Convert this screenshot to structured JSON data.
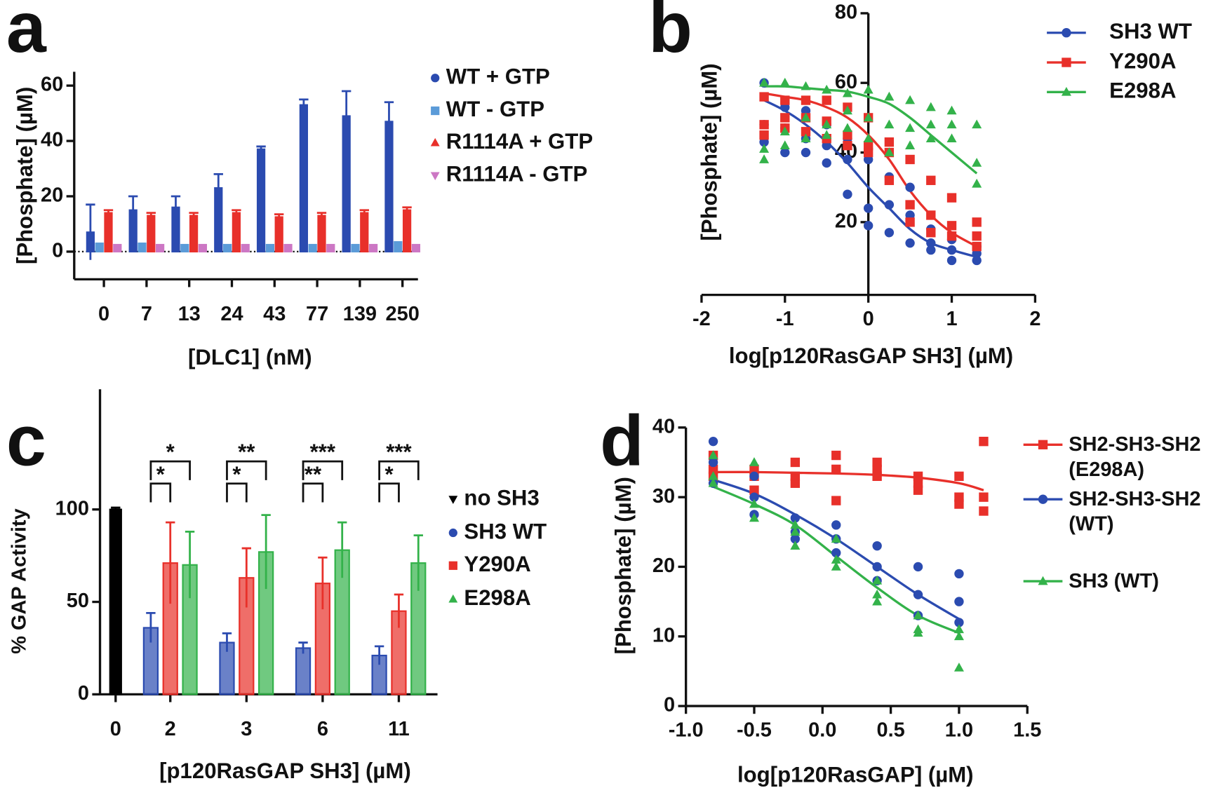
{
  "chart_data": [
    {
      "panel": "a",
      "type": "bar",
      "xlabel": "[DLC1] (nM)",
      "ylabel": "[Phosphate] (µM)",
      "categories": [
        "0",
        "7",
        "13",
        "24",
        "43",
        "77",
        "139",
        "250"
      ],
      "ylim": [
        -10,
        65
      ],
      "yticks": [
        0,
        20,
        40,
        60
      ],
      "hline": 0,
      "series": [
        {
          "name": "WT + GTP",
          "color": "#2b4bb0",
          "marker": "circle",
          "values": [
            7,
            15,
            16,
            23,
            37,
            53,
            49,
            47
          ],
          "errors": [
            10,
            5,
            4,
            5,
            1,
            2,
            9,
            7
          ]
        },
        {
          "name": "WT - GTP",
          "color": "#5b9bd8",
          "marker": "square",
          "values": [
            3,
            3,
            2.5,
            2.5,
            2.5,
            2.5,
            2.5,
            3.5
          ]
        },
        {
          "name": "R1114A + GTP",
          "color": "#e8302a",
          "marker": "triangle",
          "values": [
            14,
            13,
            13,
            14,
            12.5,
            13,
            14,
            15
          ],
          "errors": [
            1,
            1,
            1,
            1,
            1,
            1,
            1,
            1
          ]
        },
        {
          "name": "R1114A - GTP",
          "color": "#cc77c4",
          "marker": "triangle-down",
          "values": [
            2.5,
            2.5,
            2.5,
            2.5,
            2.5,
            2.5,
            2.5,
            2.5
          ]
        }
      ]
    },
    {
      "panel": "b",
      "type": "scatter",
      "xlabel": "log[p120RasGAP SH3] (µM)",
      "ylabel": "[Phosphate] (µM)",
      "xlim": [
        -2,
        2
      ],
      "xticks": [
        -2,
        -1,
        0,
        1,
        2
      ],
      "ylim": [
        0,
        80
      ],
      "yticks": [
        20,
        40,
        60,
        80
      ],
      "y_axis_crosses": 0,
      "series": [
        {
          "name": "SH3 WT",
          "color": "#2b4bb0",
          "marker": "circle",
          "x": [
            -1.25,
            -1,
            -0.75,
            -0.5,
            -0.25,
            0,
            0.25,
            0.5,
            0.75,
            1,
            1.3
          ],
          "points": [
            [
              60,
              43,
              48
            ],
            [
              53,
              47,
              40
            ],
            [
              52,
              44,
              40
            ],
            [
              48,
              42,
              37
            ],
            [
              44,
              38,
              28
            ],
            [
              38,
              24,
              19
            ],
            [
              33,
              25,
              17
            ],
            [
              30,
              22,
              14
            ],
            [
              18,
              14,
              12
            ],
            [
              15,
              12,
              9
            ],
            [
              13,
              11,
              9
            ]
          ],
          "fit": [
            55,
            52,
            48,
            43,
            37,
            30,
            24,
            18,
            14,
            12,
            10
          ]
        },
        {
          "name": "Y290A",
          "color": "#e8302a",
          "marker": "square",
          "x": [
            -1.25,
            -1,
            -0.75,
            -0.5,
            -0.25,
            0,
            0.25,
            0.5,
            0.75,
            1,
            1.3
          ],
          "points": [
            [
              56,
              48,
              45
            ],
            [
              55,
              50,
              47
            ],
            [
              55,
              50,
              46
            ],
            [
              55,
              49,
              44
            ],
            [
              53,
              45,
              42
            ],
            [
              50,
              42,
              40
            ],
            [
              43,
              40,
              32
            ],
            [
              38,
              25,
              20
            ],
            [
              32,
              22,
              17
            ],
            [
              27,
              19,
              16
            ],
            [
              20,
              16,
              13
            ]
          ],
          "fit": [
            57,
            56,
            55,
            53,
            50,
            45,
            38,
            29,
            22,
            17,
            13
          ]
        },
        {
          "name": "E298A",
          "color": "#33b24a",
          "marker": "triangle",
          "x": [
            -1.25,
            -1,
            -0.75,
            -0.5,
            -0.25,
            0,
            0.25,
            0.5,
            0.75,
            1,
            1.3
          ],
          "points": [
            [
              60,
              41,
              38
            ],
            [
              60,
              46,
              42
            ],
            [
              59,
              50,
              44
            ],
            [
              58,
              48,
              45
            ],
            [
              57,
              52,
              47
            ],
            [
              58,
              50,
              44
            ],
            [
              56,
              48,
              40
            ],
            [
              55,
              47,
              42
            ],
            [
              53,
              48,
              44
            ],
            [
              52,
              48,
              44
            ],
            [
              48,
              37,
              31
            ]
          ],
          "fit": [
            59,
            59,
            58.5,
            58,
            57.5,
            56,
            54,
            50,
            45,
            40,
            34
          ]
        }
      ]
    },
    {
      "panel": "c",
      "type": "bar",
      "xlabel": "[p120RasGAP SH3] (µM)",
      "ylabel": "% GAP Activity",
      "categories": [
        "0",
        "2",
        "3",
        "6",
        "11"
      ],
      "ylim": [
        0,
        165
      ],
      "yticks": [
        0,
        50,
        100
      ],
      "series": [
        {
          "name": "no SH3",
          "color": "#000000",
          "marker": "triangle-down",
          "values": [
            100,
            null,
            null,
            null,
            null
          ],
          "errors": [
            1,
            null,
            null,
            null,
            null
          ]
        },
        {
          "name": "SH3 WT",
          "color": "#2b4bb0",
          "marker": "circle",
          "values": [
            null,
            36,
            28,
            25,
            21
          ],
          "errors": [
            null,
            8,
            5,
            3,
            5
          ]
        },
        {
          "name": "Y290A",
          "color": "#e8302a",
          "marker": "square",
          "values": [
            null,
            71,
            63,
            60,
            45
          ],
          "errors": [
            null,
            22,
            16,
            14,
            9
          ]
        },
        {
          "name": "E298A",
          "color": "#33b24a",
          "marker": "triangle",
          "values": [
            null,
            70,
            77,
            78,
            71
          ],
          "errors": [
            null,
            18,
            20,
            15,
            15
          ]
        }
      ],
      "brackets": [
        {
          "category": 1,
          "series": [
            1,
            2
          ],
          "y": 114,
          "label": "*"
        },
        {
          "category": 1,
          "series": [
            1,
            3
          ],
          "y": 126,
          "label": "*"
        },
        {
          "category": 2,
          "series": [
            1,
            2
          ],
          "y": 114,
          "label": "*"
        },
        {
          "category": 2,
          "series": [
            1,
            3
          ],
          "y": 126,
          "label": "**"
        },
        {
          "category": 3,
          "series": [
            1,
            2
          ],
          "y": 114,
          "label": "**"
        },
        {
          "category": 3,
          "series": [
            1,
            3
          ],
          "y": 126,
          "label": "***"
        },
        {
          "category": 4,
          "series": [
            1,
            2
          ],
          "y": 114,
          "label": "*"
        },
        {
          "category": 4,
          "series": [
            1,
            3
          ],
          "y": 126,
          "label": "***"
        }
      ]
    },
    {
      "panel": "d",
      "type": "scatter",
      "xlabel": "log[p120RasGAP] (µM)",
      "ylabel": "[Phosphate] (µM)",
      "xlim": [
        -1,
        1.5
      ],
      "xticks": [
        {
          "value": -1,
          "label": "-1.0"
        },
        {
          "value": -0.5,
          "label": "-0.5"
        },
        {
          "value": 0,
          "label": "0.0"
        },
        {
          "value": 0.5,
          "label": "0.5"
        },
        {
          "value": 1,
          "label": "1.0"
        },
        {
          "value": 1.5,
          "label": "1.5"
        }
      ],
      "ylim": [
        0,
        40
      ],
      "yticks": [
        0,
        10,
        20,
        30,
        40
      ],
      "series": [
        {
          "name": "SH2-SH3-SH2\n(E298A)",
          "color": "#e8302a",
          "marker": "square",
          "x": [
            -0.8,
            -0.5,
            -0.2,
            0.1,
            0.4,
            0.7,
            1,
            1.18
          ],
          "points": [
            [
              36,
              34,
              33
            ],
            [
              34,
              33,
              31
            ],
            [
              35,
              33,
              32
            ],
            [
              36,
              34,
              29.5
            ],
            [
              35,
              34,
              33
            ],
            [
              33,
              32,
              31
            ],
            [
              33,
              30,
              29
            ],
            [
              38,
              30,
              28
            ]
          ],
          "fit": [
            33.6,
            33.6,
            33.5,
            33.4,
            33.2,
            32.8,
            32,
            31
          ]
        },
        {
          "name": "SH2-SH3-SH2\n(WT)",
          "color": "#2b4bb0",
          "marker": "circle",
          "x": [
            -0.8,
            -0.5,
            -0.2,
            0.1,
            0.4,
            0.7,
            1
          ],
          "points": [
            [
              38,
              35,
              32
            ],
            [
              33,
              30,
              27.5
            ],
            [
              27,
              25,
              24
            ],
            [
              26,
              24,
              22
            ],
            [
              23,
              20,
              18
            ],
            [
              20,
              16,
              13
            ],
            [
              19,
              15,
              12
            ]
          ],
          "fit": [
            32.5,
            30.5,
            27.5,
            24,
            20,
            16,
            12.5
          ]
        },
        {
          "name": "SH3 (WT)",
          "color": "#33b24a",
          "marker": "triangle",
          "x": [
            -0.8,
            -0.5,
            -0.2,
            0.1,
            0.4,
            0.7,
            1
          ],
          "points": [
            [
              36,
              33,
              32
            ],
            [
              35,
              29,
              27
            ],
            [
              26,
              25,
              23
            ],
            [
              24,
              21,
              20
            ],
            [
              18,
              16,
              15
            ],
            [
              13,
              11,
              10.5
            ],
            [
              11,
              10,
              5.5
            ]
          ],
          "fit": [
            31.5,
            29,
            26,
            21.5,
            17,
            13,
            10.5
          ]
        }
      ]
    }
  ]
}
